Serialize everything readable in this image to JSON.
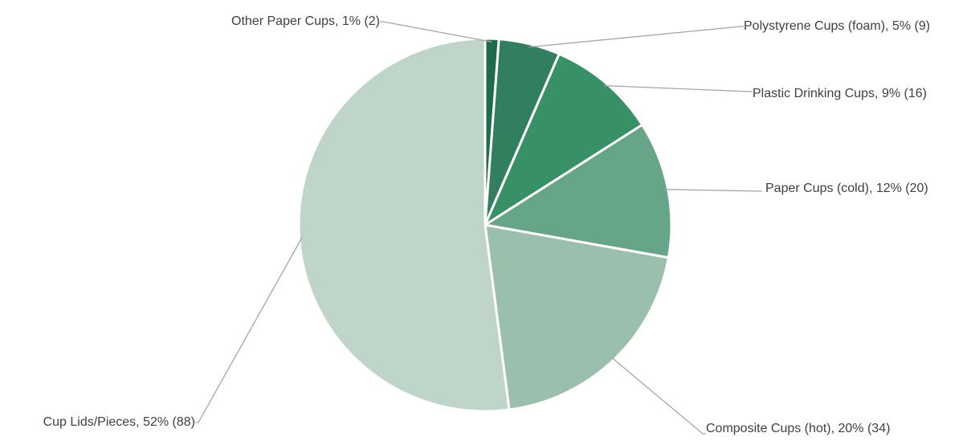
{
  "chart_data": {
    "type": "pie",
    "title": "",
    "start_angle_deg": 0,
    "direction": "clockwise",
    "slices": [
      {
        "label": "Other Paper Cups, 1% (2)",
        "category": "Other Paper Cups",
        "percent": 1,
        "count": 2,
        "color": "#1e6b4e"
      },
      {
        "label": "Polystyrene Cups (foam), 5% (9)",
        "category": "Polystyrene Cups (foam)",
        "percent": 5,
        "count": 9,
        "color": "#317f5f"
      },
      {
        "label": "Plastic Drinking Cups, 9% (16)",
        "category": "Plastic Drinking Cups",
        "percent": 9,
        "count": 16,
        "color": "#389067"
      },
      {
        "label": "Paper Cups (cold), 12% (20)",
        "category": "Paper Cups (cold)",
        "percent": 12,
        "count": 20,
        "color": "#67a588"
      },
      {
        "label": "Composite Cups (hot), 20% (34)",
        "category": "Composite Cups (hot)",
        "percent": 20,
        "count": 34,
        "color": "#9bbfad"
      },
      {
        "label": "Cup Lids/Pieces, 52% (88)",
        "category": "Cup Lids/Pieces",
        "percent": 52,
        "count": 88,
        "color": "#bfd5ca"
      }
    ]
  }
}
